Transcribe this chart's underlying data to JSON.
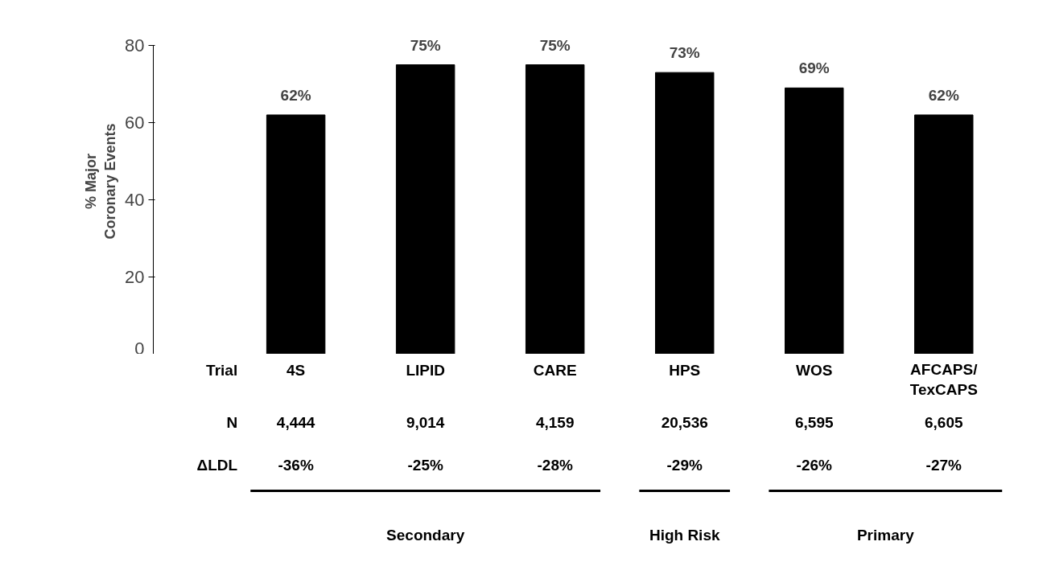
{
  "chart_data": {
    "type": "bar",
    "categories": [
      "4S",
      "LIPID",
      "CARE",
      "HPS",
      "WOS",
      "AFCAPS/\nTexCAPS"
    ],
    "values": [
      62,
      75,
      75,
      73,
      69,
      62
    ],
    "value_labels": [
      "62%",
      "75%",
      "75%",
      "73%",
      "69%",
      "62%"
    ],
    "color": "#000000",
    "ylabel": "% Major\nCoronary Events",
    "ylim": [
      0,
      80
    ],
    "yticks": [
      0,
      20,
      40,
      60,
      80
    ],
    "grid": false,
    "annotations": [
      "Trial",
      "N",
      "ΔLDL",
      "4,444",
      "9,014",
      "4,159",
      "20,536",
      "6,595",
      "6,605",
      "-36%",
      "-25%",
      "-28%",
      "-29%",
      "-26%",
      "-27%",
      "Secondary",
      "High Risk",
      "Primary"
    ]
  }
}
